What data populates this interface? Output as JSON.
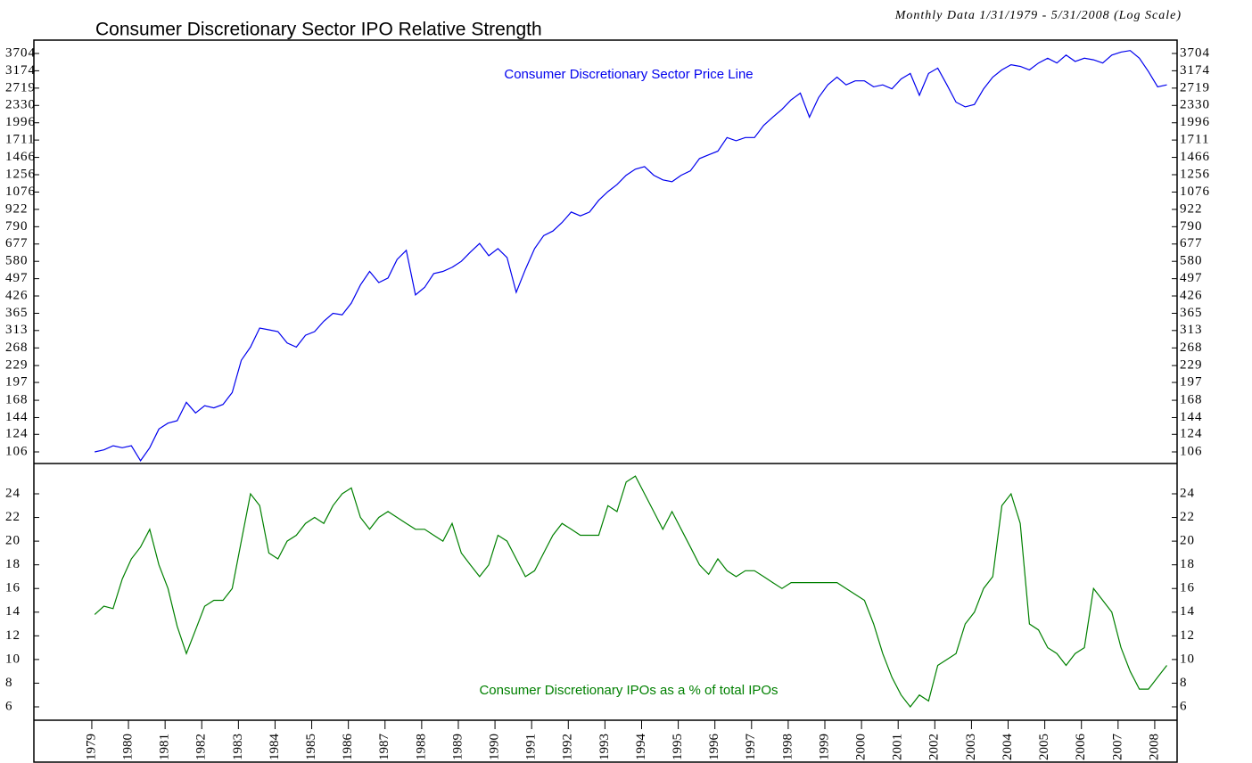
{
  "chart_data": [
    {
      "type": "line",
      "title": "Consumer Discretionary Sector IPO Relative Strength",
      "subtitle": "Monthly Data 1/31/1979 - 5/31/2008 (Log Scale)",
      "log_scale": true,
      "x": [
        1979.08,
        1979.33,
        1979.58,
        1979.83,
        1980.08,
        1980.33,
        1980.58,
        1980.83,
        1981.08,
        1981.33,
        1981.58,
        1981.83,
        1982.08,
        1982.33,
        1982.58,
        1982.83,
        1983.08,
        1983.33,
        1983.58,
        1983.83,
        1984.08,
        1984.33,
        1984.58,
        1984.83,
        1985.08,
        1985.33,
        1985.58,
        1985.83,
        1986.08,
        1986.33,
        1986.58,
        1986.83,
        1987.08,
        1987.33,
        1987.58,
        1987.83,
        1988.08,
        1988.33,
        1988.58,
        1988.83,
        1989.08,
        1989.33,
        1989.58,
        1989.83,
        1990.08,
        1990.33,
        1990.58,
        1990.83,
        1991.08,
        1991.33,
        1991.58,
        1991.83,
        1992.08,
        1992.33,
        1992.58,
        1992.83,
        1993.08,
        1993.33,
        1993.58,
        1993.83,
        1994.08,
        1994.33,
        1994.58,
        1994.83,
        1995.08,
        1995.33,
        1995.58,
        1995.83,
        1996.08,
        1996.33,
        1996.58,
        1996.83,
        1997.08,
        1997.33,
        1997.58,
        1997.83,
        1998.08,
        1998.33,
        1998.58,
        1998.83,
        1999.08,
        1999.33,
        1999.58,
        1999.83,
        2000.08,
        2000.33,
        2000.58,
        2000.83,
        2001.08,
        2001.33,
        2001.58,
        2001.83,
        2002.08,
        2002.33,
        2002.58,
        2002.83,
        2003.08,
        2003.33,
        2003.58,
        2003.83,
        2004.08,
        2004.33,
        2004.58,
        2004.83,
        2005.08,
        2005.33,
        2005.58,
        2005.83,
        2006.08,
        2006.33,
        2006.58,
        2006.83,
        2007.08,
        2007.33,
        2007.58,
        2007.83,
        2008.08,
        2008.33
      ],
      "series": [
        {
          "name": "Consumer Discretionary Sector Price Line",
          "color": "#0000ee",
          "values": [
            106,
            108,
            112,
            110,
            112,
            98,
            110,
            130,
            137,
            140,
            165,
            150,
            160,
            157,
            162,
            180,
            240,
            270,
            320,
            315,
            310,
            280,
            270,
            300,
            310,
            340,
            365,
            360,
            400,
            470,
            530,
            480,
            500,
            590,
            640,
            430,
            460,
            520,
            530,
            550,
            580,
            630,
            680,
            610,
            650,
            600,
            440,
            540,
            650,
            730,
            760,
            820,
            900,
            870,
            900,
            1000,
            1080,
            1150,
            1250,
            1320,
            1350,
            1250,
            1200,
            1180,
            1250,
            1300,
            1450,
            1500,
            1550,
            1750,
            1700,
            1750,
            1750,
            1950,
            2100,
            2250,
            2450,
            2600,
            2100,
            2500,
            2800,
            3000,
            2800,
            2900,
            2900,
            2750,
            2800,
            2700,
            2950,
            3100,
            2550,
            3100,
            3250,
            2800,
            2400,
            2300,
            2350,
            2700,
            3000,
            3200,
            3350,
            3300,
            3200,
            3400,
            3550,
            3400,
            3650,
            3450,
            3550,
            3500,
            3400,
            3650,
            3750,
            3800,
            3550,
            3150,
            2750,
            2800
          ]
        }
      ],
      "xlim": [
        1977.42,
        2008.61
      ],
      "ylim": [
        95.6,
        4172
      ],
      "yticks": [
        106,
        124,
        144,
        168,
        197,
        229,
        268,
        313,
        365,
        426,
        497,
        580,
        677,
        790,
        922,
        1076,
        1256,
        1466,
        1711,
        1996,
        2330,
        2719,
        3174,
        3704
      ]
    },
    {
      "type": "line",
      "x": [
        1979.08,
        1979.33,
        1979.58,
        1979.83,
        1980.08,
        1980.33,
        1980.58,
        1980.83,
        1981.08,
        1981.33,
        1981.58,
        1981.83,
        1982.08,
        1982.33,
        1982.58,
        1982.83,
        1983.08,
        1983.33,
        1983.58,
        1983.83,
        1984.08,
        1984.33,
        1984.58,
        1984.83,
        1985.08,
        1985.33,
        1985.58,
        1985.83,
        1986.08,
        1986.33,
        1986.58,
        1986.83,
        1987.08,
        1987.33,
        1987.58,
        1987.83,
        1988.08,
        1988.33,
        1988.58,
        1988.83,
        1989.08,
        1989.33,
        1989.58,
        1989.83,
        1990.08,
        1990.33,
        1990.58,
        1990.83,
        1991.08,
        1991.33,
        1991.58,
        1991.83,
        1992.08,
        1992.33,
        1992.58,
        1992.83,
        1993.08,
        1993.33,
        1993.58,
        1993.83,
        1994.08,
        1994.33,
        1994.58,
        1994.83,
        1995.08,
        1995.33,
        1995.58,
        1995.83,
        1996.08,
        1996.33,
        1996.58,
        1996.83,
        1997.08,
        1997.33,
        1997.58,
        1997.83,
        1998.08,
        1998.33,
        1998.58,
        1998.83,
        1999.08,
        1999.33,
        1999.58,
        1999.83,
        2000.08,
        2000.33,
        2000.58,
        2000.83,
        2001.08,
        2001.33,
        2001.58,
        2001.83,
        2002.08,
        2002.33,
        2002.58,
        2002.83,
        2003.08,
        2003.33,
        2003.58,
        2003.83,
        2004.08,
        2004.33,
        2004.58,
        2004.83,
        2005.08,
        2005.33,
        2005.58,
        2005.83,
        2006.08,
        2006.33,
        2006.58,
        2006.83,
        2007.08,
        2007.33,
        2007.58,
        2007.83,
        2008.08,
        2008.33
      ],
      "series": [
        {
          "name": "Consumer Discretionary IPOs as a % of total IPOs",
          "color": "#008000",
          "values": [
            13.8,
            14.5,
            14.3,
            16.8,
            18.5,
            19.5,
            21,
            18,
            16,
            12.8,
            10.5,
            12.5,
            14.5,
            15,
            15,
            16,
            20,
            24,
            23,
            19,
            18.5,
            20,
            20.5,
            21.5,
            22,
            21.5,
            23,
            24,
            24.5,
            22,
            21,
            22,
            22.5,
            22,
            21.5,
            21,
            21,
            20.5,
            20,
            21.5,
            19,
            18,
            17,
            18,
            20.5,
            20,
            18.5,
            17,
            17.5,
            19,
            20.5,
            21.5,
            21,
            20.5,
            20.5,
            20.5,
            23,
            22.5,
            25,
            25.5,
            24,
            22.5,
            21,
            22.5,
            21,
            19.5,
            18,
            17.2,
            18.5,
            17.5,
            17,
            17.5,
            17.5,
            17,
            16.5,
            16,
            16.5,
            16.5,
            16.5,
            16.5,
            16.5,
            16.5,
            16,
            15.5,
            15,
            13,
            10.5,
            8.5,
            7,
            6,
            7,
            6.5,
            9.5,
            10,
            10.5,
            13,
            14,
            16,
            17,
            23,
            24,
            21.5,
            13,
            12.5,
            11,
            10.5,
            9.5,
            10.5,
            11,
            16,
            15,
            14,
            11,
            9,
            7.5,
            7.5,
            8.5,
            9.5
          ]
        }
      ],
      "xlim": [
        1977.42,
        2008.61
      ],
      "ylim": [
        4.87,
        26.56
      ],
      "yticks": [
        6,
        8,
        10,
        12,
        14,
        16,
        18,
        20,
        22,
        24
      ],
      "xticks": [
        1979,
        1980,
        1981,
        1982,
        1983,
        1984,
        1985,
        1986,
        1987,
        1988,
        1989,
        1990,
        1991,
        1992,
        1993,
        1994,
        1995,
        1996,
        1997,
        1998,
        1999,
        2000,
        2001,
        2002,
        2003,
        2004,
        2005,
        2006,
        2007,
        2008
      ]
    }
  ]
}
